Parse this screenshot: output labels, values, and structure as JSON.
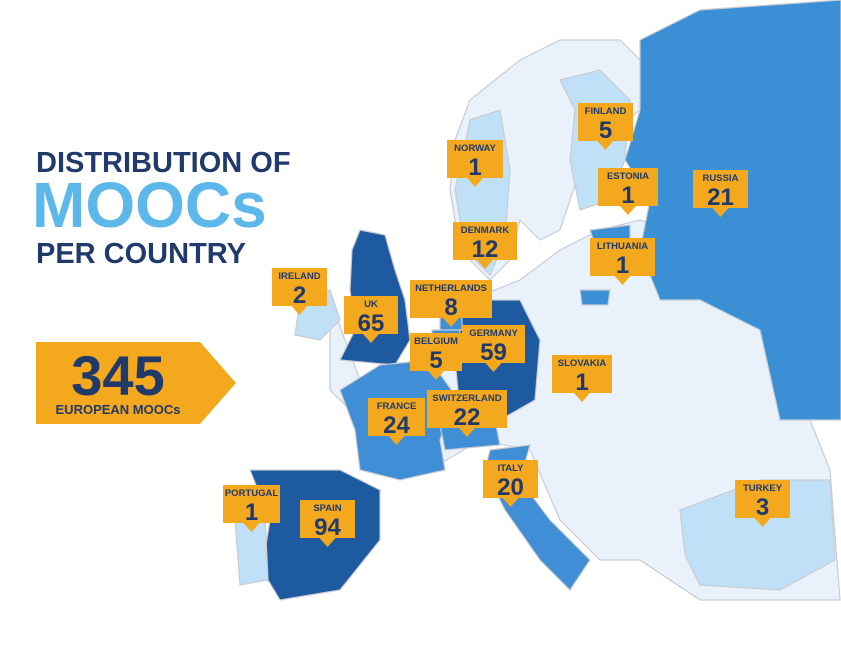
{
  "title": {
    "line1": "DISTRIBUTION OF",
    "line2": "MOOCs",
    "line3": "PER COUNTRY"
  },
  "total": {
    "value": 345,
    "label": "EUROPEAN MOOCs"
  },
  "countries": [
    {
      "name": "NORWAY",
      "value": 1
    },
    {
      "name": "FINLAND",
      "value": 5
    },
    {
      "name": "ESTONIA",
      "value": 1
    },
    {
      "name": "RUSSIA",
      "value": 21
    },
    {
      "name": "DENMARK",
      "value": 12
    },
    {
      "name": "LITHUANIA",
      "value": 1
    },
    {
      "name": "IRELAND",
      "value": 2
    },
    {
      "name": "NETHERLANDS",
      "value": 8
    },
    {
      "name": "UK",
      "value": 65
    },
    {
      "name": "BELGIUM",
      "value": 5
    },
    {
      "name": "GERMANY",
      "value": 59
    },
    {
      "name": "SLOVAKIA",
      "value": 1
    },
    {
      "name": "FRANCE",
      "value": 24
    },
    {
      "name": "SWITZERLAND",
      "value": 22
    },
    {
      "name": "ITALY",
      "value": 20
    },
    {
      "name": "TURKEY",
      "value": 3
    },
    {
      "name": "PORTUGAL",
      "value": 1
    },
    {
      "name": "SPAIN",
      "value": 94
    }
  ]
}
